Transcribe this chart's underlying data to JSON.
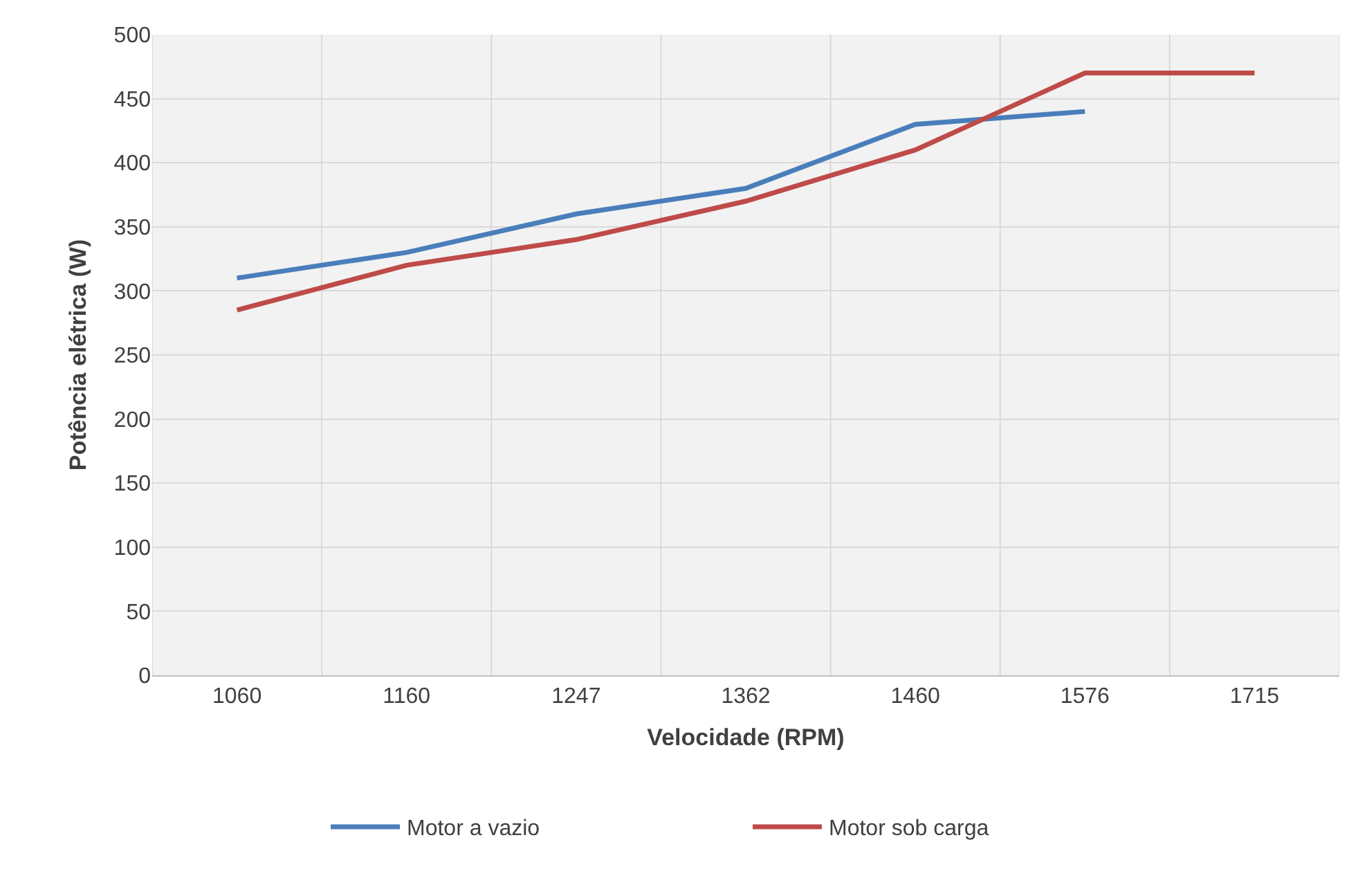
{
  "chart_data": {
    "type": "line",
    "xlabel": "Velocidade (RPM)",
    "ylabel": "Potência elétrica (W)",
    "categories": [
      "1060",
      "1160",
      "1247",
      "1362",
      "1460",
      "1576",
      "1715"
    ],
    "series": [
      {
        "name": "Motor a vazio",
        "color": "#4a7ebb",
        "values": [
          310,
          330,
          360,
          380,
          430,
          440,
          null
        ]
      },
      {
        "name": "Motor sob carga",
        "color": "#be4b48",
        "values": [
          285,
          320,
          340,
          370,
          410,
          470,
          470
        ]
      }
    ],
    "ylim": [
      0,
      500
    ],
    "yticks": [
      0,
      50,
      100,
      150,
      200,
      250,
      300,
      350,
      400,
      450,
      500
    ],
    "grid": true,
    "legend": "bottom",
    "marker": "none",
    "line_style": "solid"
  }
}
